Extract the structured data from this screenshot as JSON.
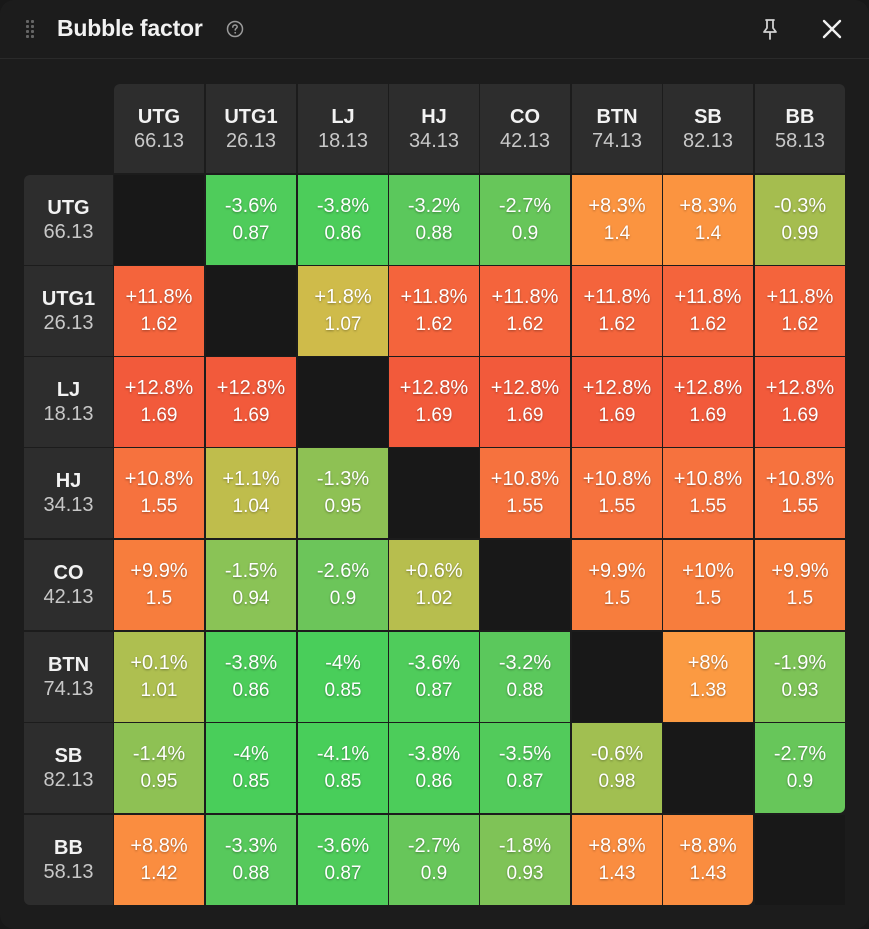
{
  "window": {
    "title": "Bubble factor",
    "icons": [
      "drag-handle-icon",
      "help-icon",
      "pin-icon",
      "close-icon"
    ]
  },
  "positions": [
    {
      "name": "UTG",
      "stack": "66.13"
    },
    {
      "name": "UTG1",
      "stack": "26.13"
    },
    {
      "name": "LJ",
      "stack": "18.13"
    },
    {
      "name": "HJ",
      "stack": "34.13"
    },
    {
      "name": "CO",
      "stack": "42.13"
    },
    {
      "name": "BTN",
      "stack": "74.13"
    },
    {
      "name": "SB",
      "stack": "82.13"
    },
    {
      "name": "BB",
      "stack": "58.13"
    }
  ],
  "matrix": [
    [
      null,
      {
        "pct": "-3.6%",
        "bf": "0.87",
        "color": "#4fcc5b"
      },
      {
        "pct": "-3.8%",
        "bf": "0.86",
        "color": "#4ccd5a"
      },
      {
        "pct": "-3.2%",
        "bf": "0.88",
        "color": "#5bc85c"
      },
      {
        "pct": "-2.7%",
        "bf": "0.9",
        "color": "#67c65a"
      },
      {
        "pct": "+8.3%",
        "bf": "1.4",
        "color": "#fb9440"
      },
      {
        "pct": "+8.3%",
        "bf": "1.4",
        "color": "#fb9440"
      },
      {
        "pct": "-0.3%",
        "bf": "0.99",
        "color": "#a5bd4f"
      }
    ],
    [
      {
        "pct": "+11.8%",
        "bf": "1.62",
        "color": "#f4643c"
      },
      null,
      {
        "pct": "+1.8%",
        "bf": "1.07",
        "color": "#cfbb4a"
      },
      {
        "pct": "+11.8%",
        "bf": "1.62",
        "color": "#f4643c"
      },
      {
        "pct": "+11.8%",
        "bf": "1.62",
        "color": "#f4643c"
      },
      {
        "pct": "+11.8%",
        "bf": "1.62",
        "color": "#f4643c"
      },
      {
        "pct": "+11.8%",
        "bf": "1.62",
        "color": "#f4643c"
      },
      {
        "pct": "+11.8%",
        "bf": "1.62",
        "color": "#f4643c"
      }
    ],
    [
      {
        "pct": "+12.8%",
        "bf": "1.69",
        "color": "#f25a3b"
      },
      {
        "pct": "+12.8%",
        "bf": "1.69",
        "color": "#f25a3b"
      },
      null,
      {
        "pct": "+12.8%",
        "bf": "1.69",
        "color": "#f25a3b"
      },
      {
        "pct": "+12.8%",
        "bf": "1.69",
        "color": "#f25a3b"
      },
      {
        "pct": "+12.8%",
        "bf": "1.69",
        "color": "#f25a3b"
      },
      {
        "pct": "+12.8%",
        "bf": "1.69",
        "color": "#f25a3b"
      },
      {
        "pct": "+12.8%",
        "bf": "1.69",
        "color": "#f25a3b"
      }
    ],
    [
      {
        "pct": "+10.8%",
        "bf": "1.55",
        "color": "#f6723e"
      },
      {
        "pct": "+1.1%",
        "bf": "1.04",
        "color": "#bfbd4c"
      },
      {
        "pct": "-1.3%",
        "bf": "0.95",
        "color": "#8ec154"
      },
      null,
      {
        "pct": "+10.8%",
        "bf": "1.55",
        "color": "#f6723e"
      },
      {
        "pct": "+10.8%",
        "bf": "1.55",
        "color": "#f6723e"
      },
      {
        "pct": "+10.8%",
        "bf": "1.55",
        "color": "#f6723e"
      },
      {
        "pct": "+10.8%",
        "bf": "1.55",
        "color": "#f6723e"
      }
    ],
    [
      {
        "pct": "+9.9%",
        "bf": "1.5",
        "color": "#f77d3d"
      },
      {
        "pct": "-1.5%",
        "bf": "0.94",
        "color": "#8ac356"
      },
      {
        "pct": "-2.6%",
        "bf": "0.9",
        "color": "#6cc55a"
      },
      {
        "pct": "+0.6%",
        "bf": "1.02",
        "color": "#b7be4e"
      },
      null,
      {
        "pct": "+9.9%",
        "bf": "1.5",
        "color": "#f77d3d"
      },
      {
        "pct": "+10%",
        "bf": "1.5",
        "color": "#f77d3d"
      },
      {
        "pct": "+9.9%",
        "bf": "1.5",
        "color": "#f77d3d"
      }
    ],
    [
      {
        "pct": "+0.1%",
        "bf": "1.01",
        "color": "#aebf50"
      },
      {
        "pct": "-3.8%",
        "bf": "0.86",
        "color": "#4ccd5a"
      },
      {
        "pct": "-4%",
        "bf": "0.85",
        "color": "#49ce5a"
      },
      {
        "pct": "-3.6%",
        "bf": "0.87",
        "color": "#4fcc5b"
      },
      {
        "pct": "-3.2%",
        "bf": "0.88",
        "color": "#5bc85c"
      },
      null,
      {
        "pct": "+8%",
        "bf": "1.38",
        "color": "#fb9a42"
      },
      {
        "pct": "-1.9%",
        "bf": "0.93",
        "color": "#7dc357"
      }
    ],
    [
      {
        "pct": "-1.4%",
        "bf": "0.95",
        "color": "#8ec154"
      },
      {
        "pct": "-4%",
        "bf": "0.85",
        "color": "#49ce5a"
      },
      {
        "pct": "-4.1%",
        "bf": "0.85",
        "color": "#48ce5a"
      },
      {
        "pct": "-3.8%",
        "bf": "0.86",
        "color": "#4ccd5a"
      },
      {
        "pct": "-3.5%",
        "bf": "0.87",
        "color": "#52cb5b"
      },
      {
        "pct": "-0.6%",
        "bf": "0.98",
        "color": "#a1bf51"
      },
      null,
      {
        "pct": "-2.7%",
        "bf": "0.9",
        "color": "#67c65a"
      }
    ],
    [
      {
        "pct": "+8.8%",
        "bf": "1.42",
        "color": "#fa8d40"
      },
      {
        "pct": "-3.3%",
        "bf": "0.88",
        "color": "#57c95c"
      },
      {
        "pct": "-3.6%",
        "bf": "0.87",
        "color": "#4fcc5b"
      },
      {
        "pct": "-2.7%",
        "bf": "0.9",
        "color": "#67c65a"
      },
      {
        "pct": "-1.8%",
        "bf": "0.93",
        "color": "#7fc357"
      },
      {
        "pct": "+8.8%",
        "bf": "1.43",
        "color": "#fa8d40"
      },
      {
        "pct": "+8.8%",
        "bf": "1.43",
        "color": "#fa8d40"
      },
      null
    ]
  ]
}
